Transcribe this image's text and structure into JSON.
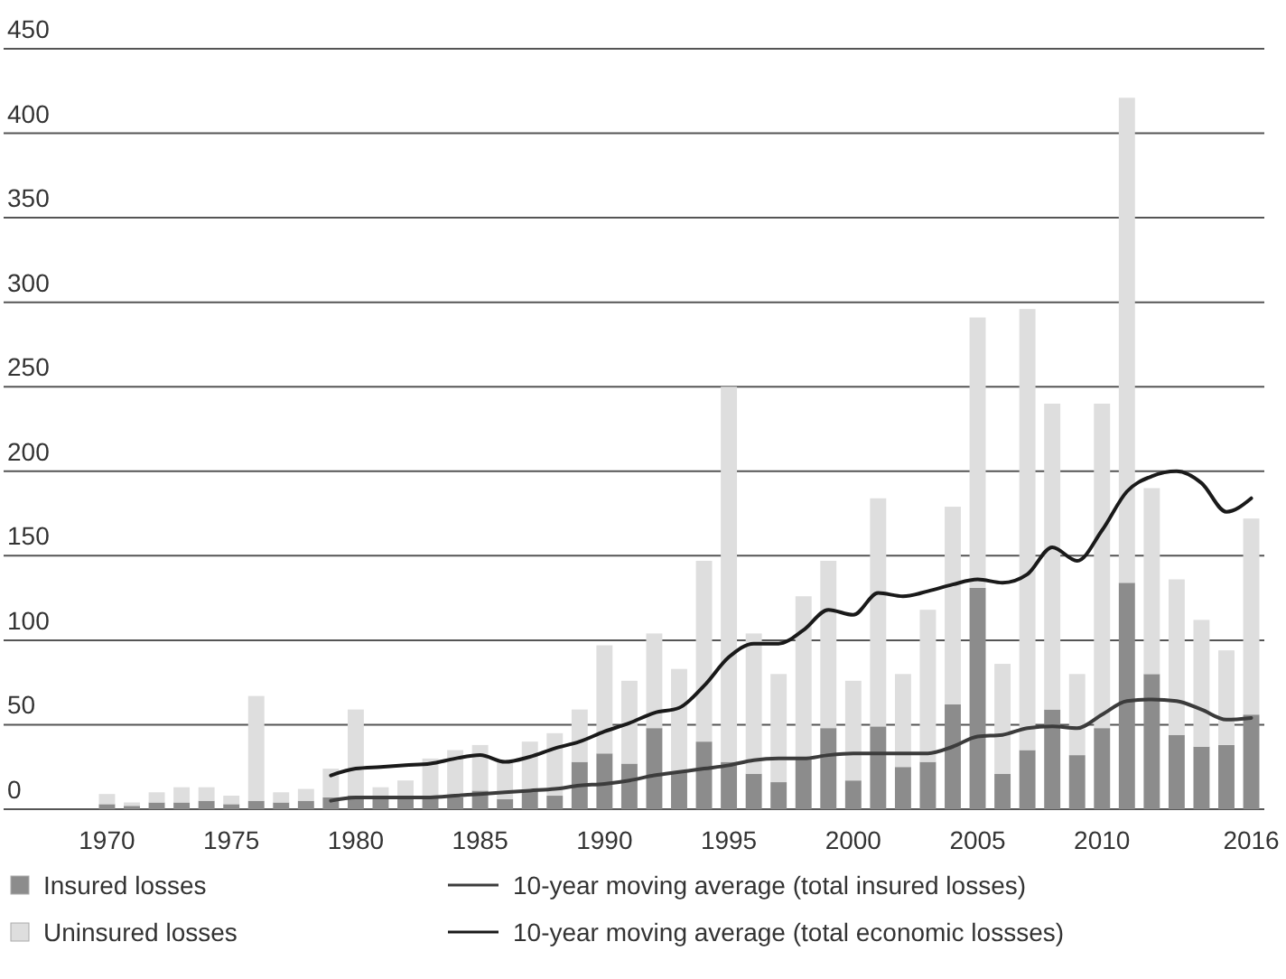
{
  "chart_data": {
    "type": "bar",
    "stacked": true,
    "categories": [
      "1970",
      null,
      null,
      null,
      null,
      "1975",
      null,
      null,
      null,
      null,
      "1980",
      null,
      null,
      null,
      null,
      "1985",
      null,
      null,
      null,
      null,
      "1990",
      null,
      null,
      null,
      null,
      "1995",
      null,
      null,
      null,
      null,
      "2000",
      null,
      null,
      null,
      null,
      "2005",
      null,
      null,
      null,
      null,
      "2010",
      null,
      null,
      null,
      null,
      null,
      "2016"
    ],
    "series": [
      {
        "name": "Insured losses",
        "type": "bar",
        "color": "#8c8c8c",
        "values": [
          3,
          2,
          4,
          4,
          5,
          3,
          5,
          4,
          5,
          7,
          8,
          6,
          7,
          8,
          7,
          11,
          6,
          11,
          8,
          28,
          33,
          27,
          48,
          22,
          40,
          28,
          21,
          16,
          30,
          48,
          17,
          49,
          25,
          28,
          62,
          131,
          21,
          35,
          59,
          32,
          48,
          134,
          80,
          44,
          37,
          38,
          56
        ]
      },
      {
        "name": "Uninsured losses",
        "type": "bar",
        "color": "#dedede",
        "values": [
          6,
          2,
          6,
          9,
          8,
          5,
          62,
          6,
          7,
          17,
          51,
          7,
          10,
          22,
          28,
          27,
          22,
          29,
          37,
          31,
          64,
          49,
          56,
          61,
          107,
          222,
          83,
          64,
          96,
          99,
          59,
          135,
          55,
          90,
          117,
          160,
          65,
          261,
          181,
          48,
          192,
          287,
          110,
          92,
          75,
          56,
          116
        ]
      },
      {
        "name": "10-year moving average (total insured losses)",
        "type": "line",
        "color": "#3c3c3c",
        "values": [
          null,
          null,
          null,
          null,
          null,
          null,
          null,
          null,
          null,
          5,
          7,
          7,
          7,
          7,
          8,
          9,
          10,
          11,
          12,
          14,
          15,
          17,
          20,
          22,
          24,
          26,
          29,
          30,
          30,
          32,
          33,
          33,
          33,
          33,
          37,
          43,
          44,
          48,
          49,
          48,
          56,
          64,
          65,
          64,
          59,
          53,
          54
        ]
      },
      {
        "name": "10-year moving average (total economic lossses)",
        "type": "line",
        "color": "#1a1a1a",
        "values": [
          null,
          null,
          null,
          null,
          null,
          null,
          null,
          null,
          null,
          20,
          24,
          25,
          26,
          27,
          30,
          32,
          28,
          31,
          36,
          40,
          46,
          51,
          57,
          60,
          73,
          90,
          98,
          98,
          106,
          118,
          115,
          128,
          126,
          129,
          133,
          136,
          134,
          139,
          155,
          147,
          165,
          188,
          197,
          200,
          193,
          176,
          184
        ]
      }
    ],
    "ylim": [
      0,
      450
    ],
    "yticks": [
      0,
      50,
      100,
      150,
      200,
      250,
      300,
      350,
      400,
      450
    ],
    "grid": "y",
    "legend": "bottom"
  }
}
